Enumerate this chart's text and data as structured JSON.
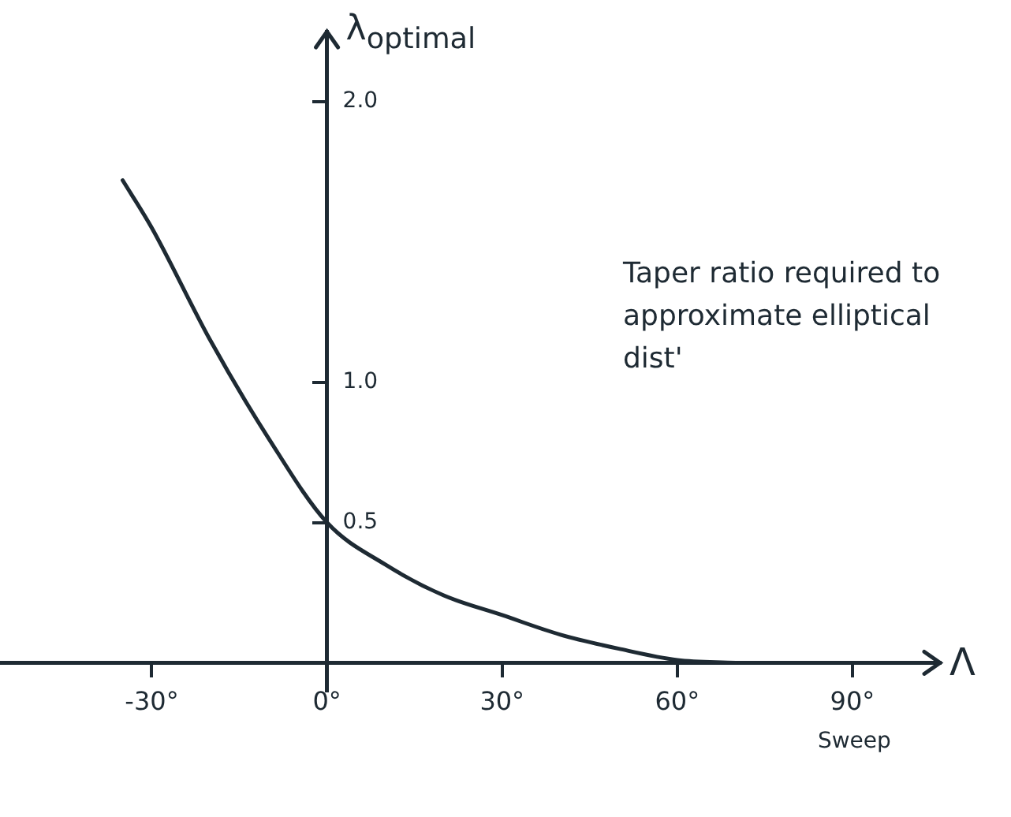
{
  "chart_data": {
    "type": "line",
    "xlabel": "Λ",
    "ylabel": "λ$_{optimal}$",
    "x": [
      -35,
      -30,
      -20,
      -10,
      0,
      10,
      20,
      30,
      40,
      50,
      60,
      70
    ],
    "series": [
      {
        "color": "#1e2a33",
        "values": [
          1.72,
          1.55,
          1.15,
          0.8,
          0.5,
          0.35,
          0.24,
          0.17,
          0.1,
          0.05,
          0.01,
          0
        ]
      }
    ],
    "xlim": [
      -56,
      105
    ],
    "ylim": [
      -0.1,
      2.25
    ],
    "xticks": [
      {
        "value": -30,
        "label": "-30°"
      },
      {
        "value": 0,
        "label": "0°"
      },
      {
        "value": 30,
        "label": "30°"
      },
      {
        "value": 60,
        "label": "60°"
      },
      {
        "value": 90,
        "label": "90°"
      }
    ],
    "yticks": [
      0.5,
      {
        "value": 1,
        "label": "1.0"
      },
      {
        "value": 2,
        "label": "2.0"
      }
    ],
    "annotations": [
      "Taper ratio required to approximate elliptical dist'",
      "Sweep"
    ],
    "grid": false,
    "legend": false,
    "marker": "none",
    "line_style": "solid"
  }
}
